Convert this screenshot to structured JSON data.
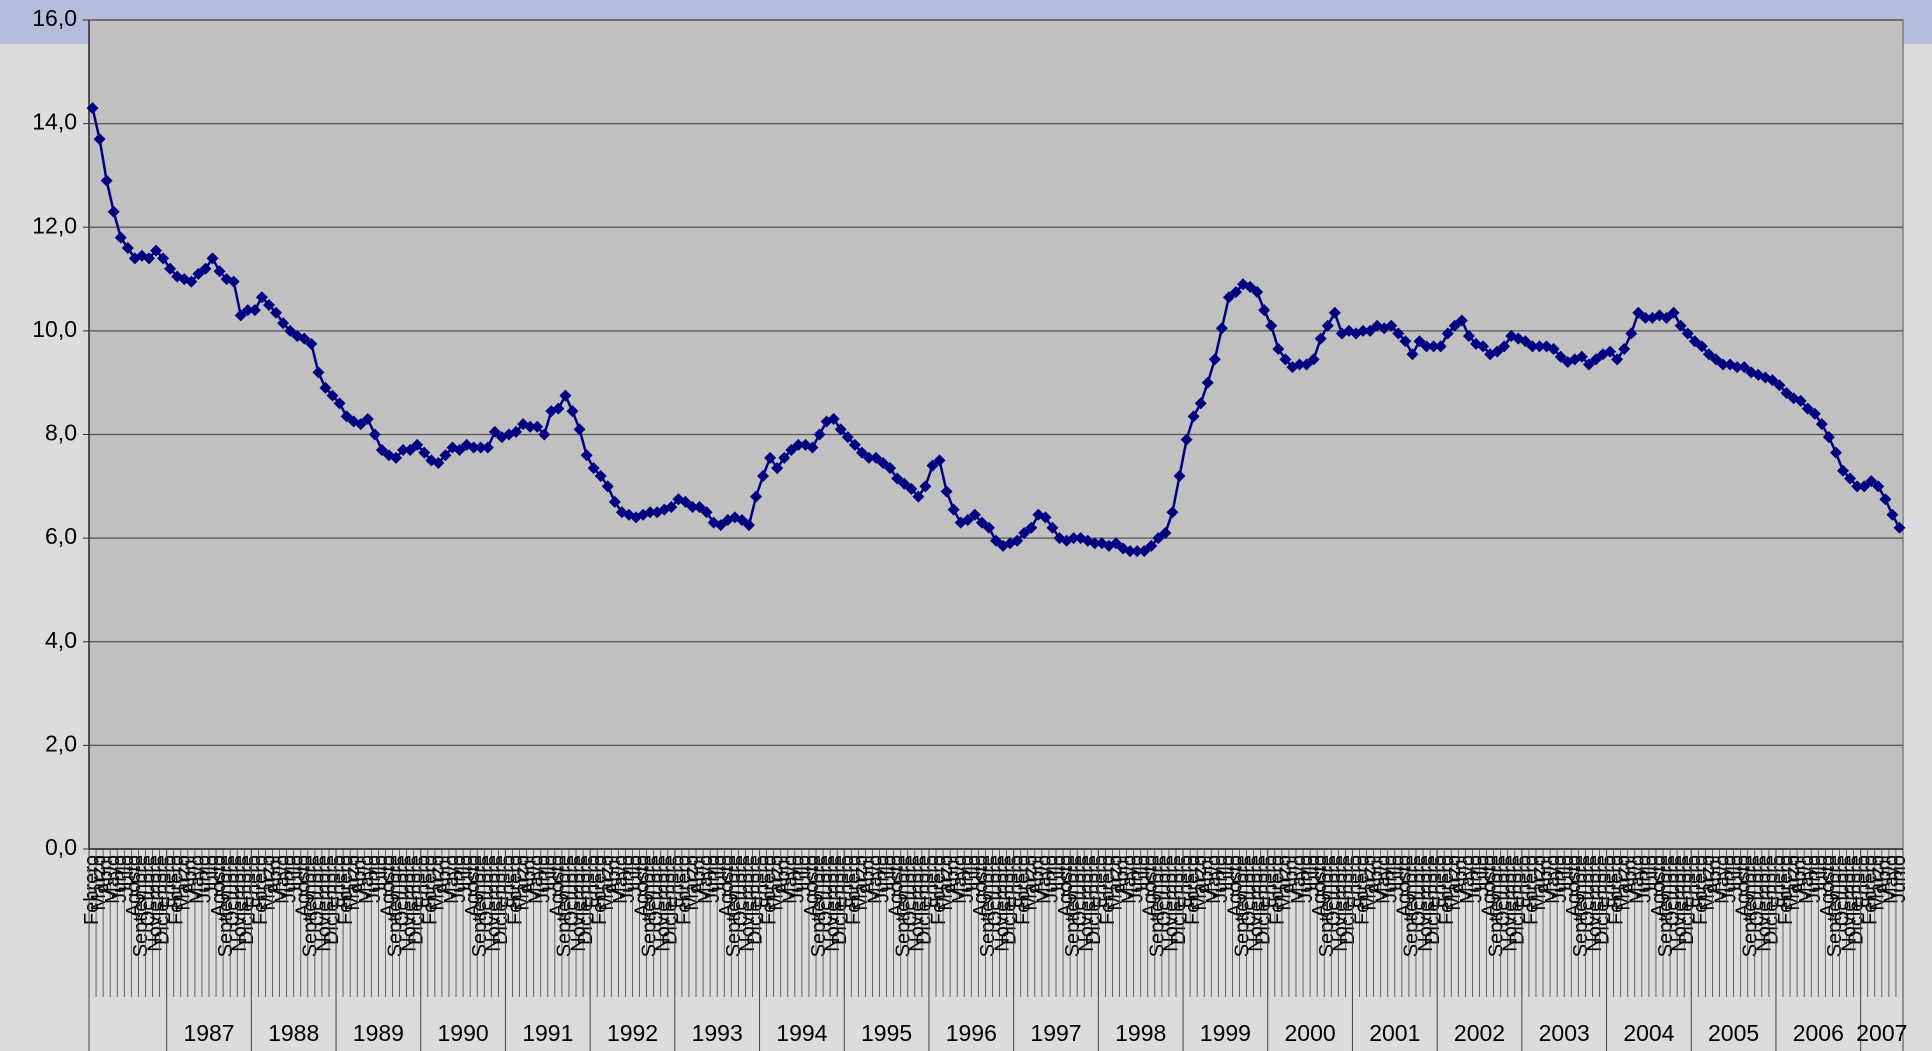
{
  "chart_data": {
    "type": "line",
    "categories": [
      "Febrero",
      "Marzo",
      "Abril",
      "Mayo",
      "Junio",
      "Julio",
      "Agosto",
      "Septiembre",
      "Octubre",
      "Noviembre",
      "Diciembre",
      "Enero",
      "Febrero",
      "Marzo",
      "Abril",
      "Mayo",
      "Junio",
      "Julio",
      "Agosto",
      "Septiembre",
      "Octubre",
      "Noviembre",
      "Diciembre",
      "Enero",
      "Febrero",
      "Marzo",
      "Abril",
      "Mayo",
      "Junio",
      "Julio",
      "Agosto",
      "Septiembre",
      "Octubre",
      "Noviembre",
      "Diciembre",
      "Enero",
      "Febrero",
      "Marzo",
      "Abril",
      "Mayo",
      "Junio",
      "Julio",
      "Agosto",
      "Septiembre",
      "Octubre",
      "Noviembre",
      "Diciembre",
      "Enero",
      "Febrero",
      "Marzo",
      "Abril",
      "Mayo",
      "Junio",
      "Julio",
      "Agosto",
      "Septiembre",
      "Octubre",
      "Noviembre",
      "Diciembre",
      "Enero",
      "Febrero",
      "Marzo",
      "Abril",
      "Mayo",
      "Junio",
      "Julio",
      "Agosto",
      "Septiembre",
      "Octubre",
      "Noviembre",
      "Diciembre",
      "Enero",
      "Febrero",
      "Marzo",
      "Abril",
      "Mayo",
      "Junio",
      "Julio",
      "Agosto",
      "Septiembre",
      "Octubre",
      "Noviembre",
      "Diciembre",
      "Enero",
      "Febrero",
      "Marzo",
      "Abril",
      "Mayo",
      "Junio",
      "Julio",
      "Agosto",
      "Septiembre",
      "Octubre",
      "Noviembre",
      "Diciembre",
      "Enero",
      "Febrero",
      "Marzo",
      "Abril",
      "Mayo",
      "Junio",
      "Julio",
      "Agosto",
      "Septiembre",
      "Octubre",
      "Noviembre",
      "Diciembre",
      "Enero",
      "Febrero",
      "Marzo",
      "Abril",
      "Mayo",
      "Junio",
      "Julio",
      "Agosto",
      "Septiembre",
      "Octubre",
      "Noviembre",
      "Diciembre",
      "Enero",
      "Febrero",
      "Marzo",
      "Abril",
      "Mayo",
      "Junio",
      "Julio",
      "Agosto",
      "Septiembre",
      "Octubre",
      "Noviembre",
      "Diciembre",
      "Enero",
      "Febrero",
      "Marzo",
      "Abril",
      "Mayo",
      "Junio",
      "Julio",
      "Agosto",
      "Septiembre",
      "Octubre",
      "Noviembre",
      "Diciembre",
      "Enero",
      "Febrero",
      "Marzo",
      "Abril",
      "Mayo",
      "Junio",
      "Julio",
      "Agosto",
      "Septiembre",
      "Octubre",
      "Noviembre",
      "Diciembre",
      "Enero",
      "Febrero",
      "Marzo",
      "Abril",
      "Mayo",
      "Junio",
      "Julio",
      "Agosto",
      "Septiembre",
      "Octubre",
      "Noviembre",
      "Diciembre",
      "Enero",
      "Febrero",
      "Marzo",
      "Abril",
      "Mayo",
      "Junio",
      "Julio",
      "Agosto",
      "Septiembre",
      "Octubre",
      "Noviembre",
      "Diciembre",
      "Enero",
      "Febrero",
      "Marzo",
      "Abril",
      "Mayo",
      "Junio",
      "Julio",
      "Agosto",
      "Septiembre",
      "Octubre",
      "Noviembre",
      "Diciembre",
      "Enero",
      "Febrero",
      "Marzo",
      "Abril",
      "Mayo",
      "Junio",
      "Julio",
      "Agosto",
      "Septiembre",
      "Octubre",
      "Noviembre",
      "Diciembre",
      "Enero",
      "Febrero",
      "Marzo",
      "Abril",
      "Mayo",
      "Junio",
      "Julio",
      "Agosto",
      "Septiembre",
      "Octubre",
      "Noviembre",
      "Diciembre",
      "Enero",
      "Febrero",
      "Marzo",
      "Abril",
      "Mayo",
      "Junio",
      "Julio",
      "Agosto",
      "Septiembre",
      "Octubre",
      "Noviembre",
      "Diciembre",
      "Enero",
      "Febrero",
      "Marzo",
      "Abril",
      "Mayo",
      "Junio",
      "Julio",
      "Agosto",
      "Septiembre",
      "Octubre",
      "Noviembre",
      "Diciembre",
      "Enero",
      "Febrero",
      "Marzo",
      "Abril",
      "Mayo",
      "Junio",
      "Julio",
      "Agosto",
      "Septiembre",
      "Octubre",
      "Noviembre",
      "Diciembre",
      "Enero",
      "Febrero",
      "Marzo",
      "Abril",
      "Mayo",
      "Junio"
    ],
    "year_groups": [
      "1987",
      "1988",
      "1989",
      "1990",
      "1991",
      "1992",
      "1993",
      "1994",
      "1995",
      "1996",
      "1997",
      "1998",
      "1999",
      "2000",
      "2001",
      "2002",
      "2003",
      "2004",
      "2005",
      "2006",
      "2007"
    ],
    "series": [
      {
        "color": "#000080",
        "values": [
          14.3,
          13.7,
          12.9,
          12.3,
          11.8,
          11.6,
          11.4,
          11.45,
          11.4,
          11.55,
          11.4,
          11.2,
          11.05,
          11.0,
          10.95,
          11.1,
          11.2,
          11.4,
          11.15,
          11.0,
          10.95,
          10.3,
          10.4,
          10.4,
          10.65,
          10.5,
          10.35,
          10.15,
          10.0,
          9.9,
          9.85,
          9.75,
          9.2,
          8.9,
          8.75,
          8.6,
          8.35,
          8.25,
          8.2,
          8.3,
          8.0,
          7.7,
          7.6,
          7.55,
          7.7,
          7.7,
          7.8,
          7.65,
          7.5,
          7.45,
          7.6,
          7.75,
          7.7,
          7.8,
          7.75,
          7.75,
          7.75,
          8.05,
          7.95,
          8.0,
          8.05,
          8.2,
          8.15,
          8.15,
          8.0,
          8.45,
          8.5,
          8.75,
          8.45,
          8.1,
          7.6,
          7.35,
          7.2,
          7.0,
          6.7,
          6.5,
          6.45,
          6.4,
          6.45,
          6.5,
          6.5,
          6.55,
          6.6,
          6.75,
          6.7,
          6.6,
          6.6,
          6.5,
          6.3,
          6.25,
          6.35,
          6.4,
          6.35,
          6.25,
          6.8,
          7.2,
          7.55,
          7.35,
          7.55,
          7.7,
          7.8,
          7.8,
          7.75,
          8.0,
          8.25,
          8.3,
          8.1,
          7.95,
          7.8,
          7.65,
          7.55,
          7.55,
          7.45,
          7.35,
          7.15,
          7.05,
          6.95,
          6.8,
          7.0,
          7.4,
          7.5,
          6.9,
          6.55,
          6.3,
          6.35,
          6.45,
          6.3,
          6.2,
          5.95,
          5.85,
          5.9,
          5.95,
          6.1,
          6.2,
          6.45,
          6.4,
          6.2,
          6.0,
          5.95,
          6.0,
          6.0,
          5.95,
          5.9,
          5.9,
          5.85,
          5.9,
          5.8,
          5.75,
          5.75,
          5.75,
          5.85,
          6.0,
          6.1,
          6.5,
          7.2,
          7.9,
          8.35,
          8.6,
          9.0,
          9.45,
          10.05,
          10.65,
          10.75,
          10.9,
          10.85,
          10.75,
          10.4,
          10.1,
          9.65,
          9.45,
          9.3,
          9.35,
          9.35,
          9.45,
          9.85,
          10.1,
          10.35,
          9.95,
          10.0,
          9.95,
          10.0,
          10.0,
          10.1,
          10.05,
          10.1,
          9.95,
          9.8,
          9.55,
          9.8,
          9.7,
          9.7,
          9.7,
          9.95,
          10.1,
          10.2,
          9.9,
          9.75,
          9.7,
          9.55,
          9.6,
          9.7,
          9.9,
          9.85,
          9.8,
          9.7,
          9.7,
          9.7,
          9.65,
          9.5,
          9.4,
          9.45,
          9.5,
          9.35,
          9.45,
          9.55,
          9.6,
          9.45,
          9.65,
          9.95,
          10.35,
          10.25,
          10.25,
          10.3,
          10.25,
          10.35,
          10.1,
          9.95,
          9.8,
          9.7,
          9.55,
          9.45,
          9.35,
          9.35,
          9.3,
          9.3,
          9.2,
          9.15,
          9.1,
          9.05,
          8.95,
          8.8,
          8.7,
          8.65,
          8.5,
          8.4,
          8.2,
          7.95,
          7.65,
          7.3,
          7.15,
          7.0,
          7.0,
          7.1,
          7.0,
          6.75,
          6.45,
          6.2
        ]
      }
    ],
    "ylim": [
      0,
      16
    ],
    "yticks": [
      {
        "value": 0,
        "label": "0,0"
      },
      {
        "value": 2,
        "label": "2,0"
      },
      {
        "value": 4,
        "label": "4,0"
      },
      {
        "value": 6,
        "label": "6,0"
      },
      {
        "value": 8,
        "label": "8,0"
      },
      {
        "value": 10,
        "label": "10,0"
      },
      {
        "value": 12,
        "label": "12,0"
      },
      {
        "value": 14,
        "label": "14,0"
      },
      {
        "value": 16,
        "label": "16,0"
      }
    ],
    "grid": true,
    "plot_background": "#c0c0c0"
  }
}
